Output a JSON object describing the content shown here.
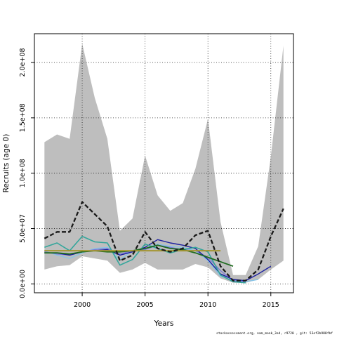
{
  "chart_data": {
    "type": "line",
    "title": "",
    "xlabel": "Years",
    "ylabel": "Recruits (age 0)",
    "xlim": [
      1996.2,
      2016.8
    ],
    "ylim": [
      -8000000,
      226000000
    ],
    "x_ticks": [
      2000,
      2005,
      2010,
      2015
    ],
    "x_tick_labels": [
      "2000",
      "2005",
      "2010",
      "2015"
    ],
    "y_ticks": [
      0,
      50000000,
      100000000,
      150000000,
      200000000
    ],
    "y_tick_labels": [
      "0.0e+00",
      "5.0e+07",
      "1.0e+08",
      "1.5e+08",
      "2.0e+08"
    ],
    "grid": true,
    "legend": "none",
    "confidence_band": {
      "x": [
        1997,
        1998,
        1999,
        2000,
        2001,
        2002,
        2003,
        2004,
        2005,
        2006,
        2007,
        2008,
        2009,
        2010,
        2011,
        2012,
        2013,
        2014,
        2015,
        2016
      ],
      "upper": [
        128000000,
        135000000,
        131000000,
        217000000,
        168000000,
        131000000,
        48000000,
        59000000,
        116000000,
        80000000,
        66000000,
        73000000,
        104000000,
        149000000,
        56000000,
        8000000,
        8000000,
        34000000,
        115000000,
        215000000
      ],
      "lower": [
        13000000,
        16000000,
        17000000,
        25000000,
        23000000,
        21000000,
        10000000,
        13000000,
        19000000,
        13000000,
        13000000,
        13000000,
        18000000,
        15000000,
        5000000,
        1000000,
        1000000,
        4000000,
        13000000,
        21000000
      ],
      "color": "#bebebe"
    },
    "series": [
      {
        "x": [
          1997,
          1998,
          1999,
          2000,
          2001,
          2002,
          2003,
          2004,
          2005,
          2006,
          2007,
          2008,
          2009,
          2010,
          2011,
          2012,
          2013,
          2014,
          2015,
          2016
        ],
        "values": [
          41000000,
          47000000,
          47000000,
          74000000,
          63000000,
          52000000,
          21000000,
          26000000,
          47000000,
          32000000,
          29000000,
          32000000,
          44000000,
          48000000,
          16000000,
          3000000,
          3000000,
          13000000,
          43000000,
          68000000
        ],
        "color": "#1a1a1a",
        "dash": "6,3",
        "width": 2.3
      },
      {
        "x": [
          1997,
          1998,
          1999,
          2000,
          2001,
          2002,
          2003,
          2004,
          2005,
          2006,
          2007,
          2008,
          2009,
          2010,
          2011,
          2012,
          2013,
          2014
        ],
        "values": [
          30000000,
          26000000,
          23000000,
          28000000,
          32000000,
          33000000,
          22000000,
          30000000,
          32000000,
          36000000,
          34000000,
          33000000,
          30000000,
          21000000,
          7000000,
          3000000,
          2000000,
          4000000
        ],
        "color": "#87c4e8",
        "dash": "",
        "width": 1.3
      },
      {
        "x": [
          1997,
          1998,
          1999,
          2000,
          2001,
          2002,
          2003,
          2004,
          2005,
          2006,
          2007,
          2008,
          2009,
          2010,
          2011,
          2012,
          2013
        ],
        "values": [
          29000000,
          27000000,
          26000000,
          29000000,
          31000000,
          32000000,
          27000000,
          30000000,
          31000000,
          35000000,
          33000000,
          31000000,
          30000000,
          24000000,
          12000000,
          3000000,
          2000000
        ],
        "color": "#7a7ad6",
        "dash": "",
        "width": 1.3
      },
      {
        "x": [
          1997,
          1998,
          1999,
          2000,
          2001,
          2002,
          2003,
          2004,
          2005,
          2006,
          2007,
          2008,
          2009,
          2010,
          2011,
          2012,
          2013,
          2014,
          2015
        ],
        "values": [
          28000000,
          28000000,
          26000000,
          29000000,
          30000000,
          31000000,
          26000000,
          29000000,
          33000000,
          40000000,
          37000000,
          35000000,
          32000000,
          22000000,
          9000000,
          4000000,
          3000000,
          9000000,
          16000000
        ],
        "color": "#1b1fa0",
        "dash": "",
        "width": 1.4
      },
      {
        "x": [
          1997,
          1998,
          1999,
          2000,
          2001,
          2002,
          2003,
          2004,
          2005,
          2006,
          2007,
          2008,
          2009,
          2010,
          2011,
          2012,
          2013
        ],
        "values": [
          33000000,
          37000000,
          30000000,
          43000000,
          38000000,
          37000000,
          17000000,
          22000000,
          36000000,
          32000000,
          28000000,
          31000000,
          33000000,
          29000000,
          8000000,
          2000000,
          1000000
        ],
        "color": "#33a69b",
        "dash": "",
        "width": 1.6
      },
      {
        "x": [
          1997,
          1998,
          1999,
          2000,
          2001,
          2002,
          2003,
          2004,
          2005,
          2006,
          2007,
          2008,
          2009,
          2010,
          2011,
          2012
        ],
        "values": [
          28000000,
          28000000,
          27000000,
          29000000,
          30000000,
          29000000,
          29000000,
          30000000,
          32000000,
          35000000,
          32000000,
          31000000,
          28000000,
          24000000,
          20000000,
          16000000
        ],
        "color": "#1e6b1e",
        "dash": "",
        "width": 1.8
      },
      {
        "x": [
          1997,
          1998,
          1999,
          2000,
          2001,
          2002,
          2003,
          2004,
          2005,
          2006,
          2007,
          2008,
          2009,
          2010,
          2011
        ],
        "values": [
          30000000,
          30000000,
          30000000,
          30000000,
          30000000,
          30000000,
          30000000,
          30000000,
          30000000,
          30000000,
          30000000,
          30000000,
          30000000,
          30000000,
          30000000
        ],
        "color": "#a59530",
        "dash": "",
        "width": 2.0
      }
    ]
  },
  "footer_text": "stockassessment.org, nam_monk_3ed, r9720 , git: 53ef2b988fbf"
}
